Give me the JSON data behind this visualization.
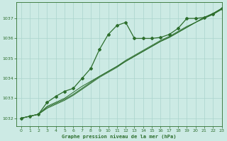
{
  "background_color": "#cceae4",
  "grid_color": "#aad4cc",
  "line_color": "#2d6e2d",
  "title": "Graphe pression niveau de la mer (hPa)",
  "xlim": [
    -0.5,
    23
  ],
  "ylim": [
    1031.6,
    1037.8
  ],
  "yticks": [
    1032,
    1033,
    1034,
    1035,
    1036,
    1037
  ],
  "xticks": [
    0,
    1,
    2,
    3,
    4,
    5,
    6,
    7,
    8,
    9,
    10,
    11,
    12,
    13,
    14,
    15,
    16,
    17,
    18,
    19,
    20,
    21,
    22,
    23
  ],
  "line1_x": [
    0,
    1,
    2,
    3,
    4,
    5,
    6,
    7,
    8,
    9,
    10,
    11,
    12,
    13,
    14,
    15,
    16,
    17,
    18,
    19,
    20,
    21,
    22,
    23
  ],
  "line1_y": [
    1032.0,
    1032.1,
    1032.2,
    1032.6,
    1032.8,
    1033.0,
    1033.3,
    1033.6,
    1033.85,
    1034.1,
    1034.35,
    1034.6,
    1034.85,
    1035.1,
    1035.35,
    1035.6,
    1035.85,
    1036.05,
    1036.3,
    1036.55,
    1036.8,
    1037.0,
    1037.2,
    1037.45
  ],
  "line2_x": [
    0,
    1,
    2,
    3,
    4,
    5,
    6,
    7,
    8,
    9,
    10,
    11,
    12,
    13,
    14,
    15,
    16,
    17,
    18,
    19,
    20,
    21,
    22,
    23
  ],
  "line2_y": [
    1032.0,
    1032.1,
    1032.2,
    1032.55,
    1032.75,
    1032.95,
    1033.2,
    1033.5,
    1033.8,
    1034.1,
    1034.35,
    1034.6,
    1034.9,
    1035.15,
    1035.4,
    1035.65,
    1035.9,
    1036.1,
    1036.35,
    1036.6,
    1036.8,
    1037.05,
    1037.25,
    1037.5
  ],
  "line3_x": [
    0,
    1,
    2,
    3,
    4,
    5,
    6,
    7,
    8,
    9,
    10,
    11,
    12,
    13,
    14,
    15,
    16,
    17,
    18,
    19,
    20,
    21,
    22,
    23
  ],
  "line3_y": [
    1032.0,
    1032.1,
    1032.2,
    1032.5,
    1032.7,
    1032.9,
    1033.15,
    1033.45,
    1033.75,
    1034.05,
    1034.3,
    1034.55,
    1034.85,
    1035.1,
    1035.35,
    1035.6,
    1035.85,
    1036.05,
    1036.3,
    1036.55,
    1036.8,
    1037.05,
    1037.25,
    1037.5
  ],
  "main_x": [
    0,
    1,
    2,
    3,
    4,
    5,
    6,
    7,
    8,
    9,
    10,
    11,
    12,
    13,
    14,
    15,
    16,
    17,
    18,
    19,
    20,
    21,
    22,
    23
  ],
  "main_y": [
    1032.0,
    1032.1,
    1032.2,
    1032.8,
    1033.1,
    1033.35,
    1033.5,
    1034.0,
    1034.5,
    1035.45,
    1036.2,
    1036.65,
    1036.8,
    1036.0,
    1036.0,
    1036.0,
    1036.05,
    1036.2,
    1036.5,
    1037.0,
    1037.0,
    1037.05,
    1037.2,
    1037.5
  ]
}
